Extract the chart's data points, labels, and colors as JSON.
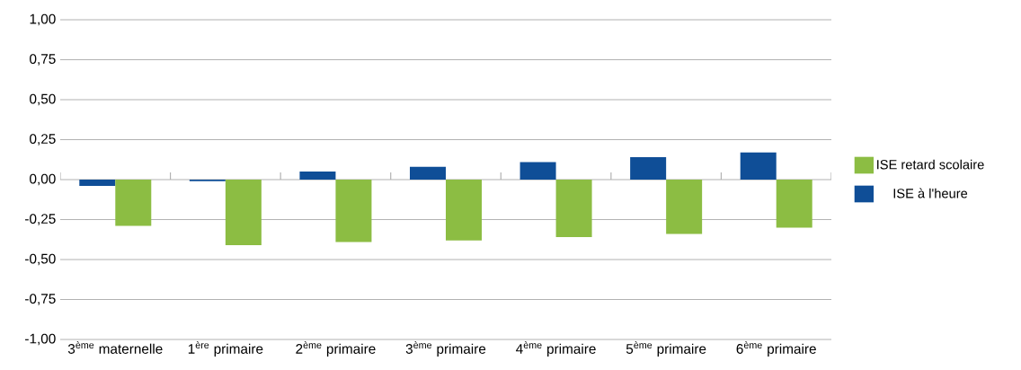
{
  "chart_data": {
    "type": "bar",
    "categories": [
      "3$^{ème}$ maternelle",
      "1$^{ère}$ primaire",
      "2$^{ème}$ primaire",
      "3$^{ème}$ primaire",
      "4$^{ème}$ primaire",
      "5$^{ème}$ primaire",
      "6$^{ème}$ primaire"
    ],
    "series": [
      {
        "name": "ISE à l'heure",
        "color": "#0f4e97",
        "values": [
          -0.04,
          -0.01,
          0.05,
          0.08,
          0.11,
          0.14,
          0.17
        ]
      },
      {
        "name": "ISE retard scolaire",
        "color": "#8cbd43",
        "values": [
          -0.29,
          -0.41,
          -0.39,
          -0.38,
          -0.36,
          -0.34,
          -0.3
        ]
      }
    ],
    "ylim": [
      -1,
      1
    ],
    "yticks": [
      {
        "value": -1,
        "label": "-1,00"
      },
      {
        "value": -0.75,
        "label": "-0,75"
      },
      {
        "value": -0.5,
        "label": "-0,50"
      },
      {
        "value": -0.25,
        "label": "-0,25"
      },
      {
        "value": 0,
        "label": "0,00"
      },
      {
        "value": 0.25,
        "label": "0,25"
      },
      {
        "value": 0.5,
        "label": "0,50"
      },
      {
        "value": 0.75,
        "label": "0,75"
      },
      {
        "value": 1,
        "label": "1,00"
      }
    ],
    "grid": "y",
    "legend": "right"
  }
}
